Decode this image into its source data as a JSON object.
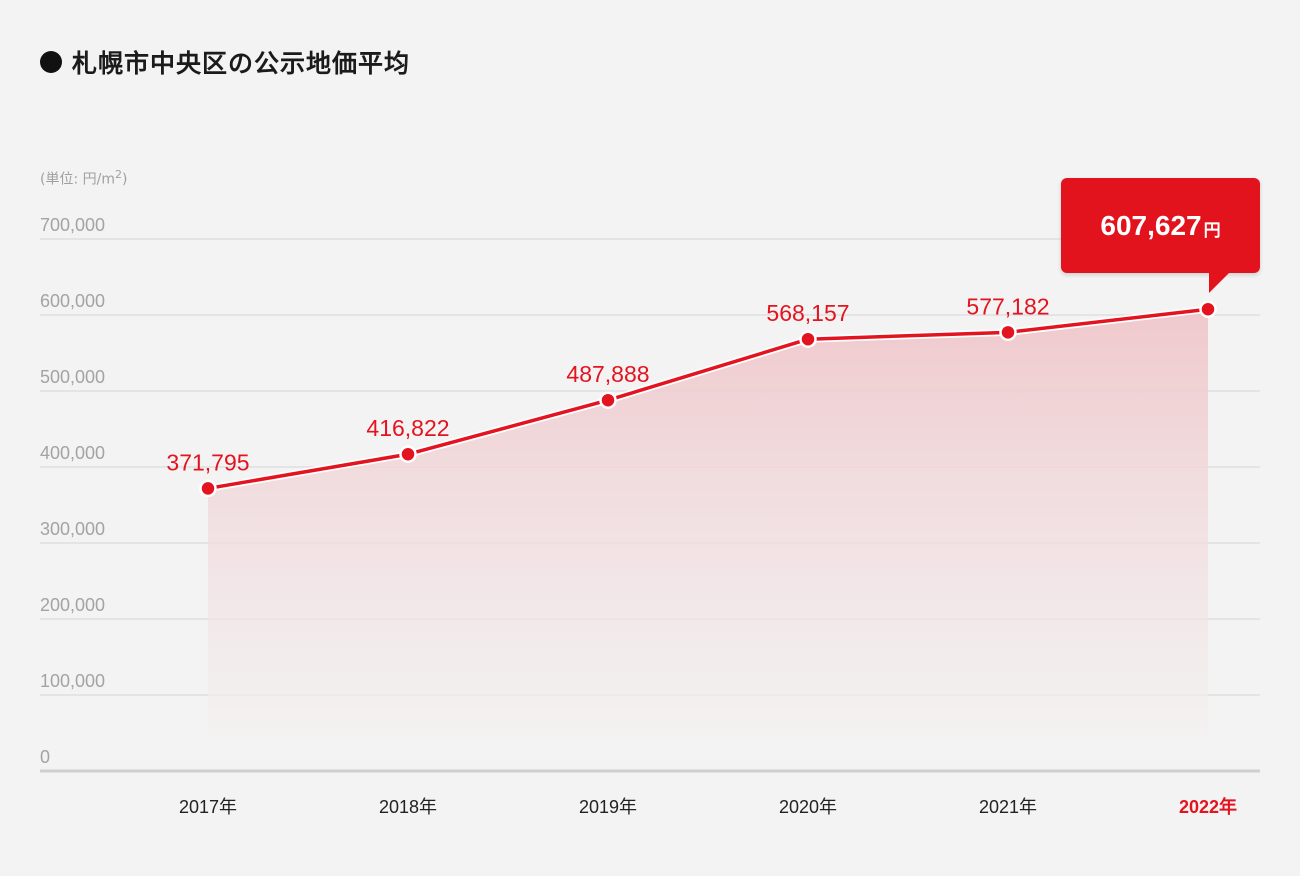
{
  "title": "札幌市中央区の公示地価平均",
  "unit_label": "(単位: 円/m",
  "unit_sup": "2",
  "unit_close": ")",
  "callout": {
    "value": "607,627",
    "unit": "円"
  },
  "colors": {
    "accent": "#e3141f",
    "fill": "#f0c9cd",
    "grid": "#d6d6d6",
    "axis": "#cfcfcf"
  },
  "chart_data": {
    "type": "area",
    "categories": [
      "2017年",
      "2018年",
      "2019年",
      "2020年",
      "2021年",
      "2022年"
    ],
    "values": [
      371795,
      416822,
      487888,
      568157,
      577182,
      607627
    ],
    "labels": [
      "371,795",
      "416,822",
      "487,888",
      "568,157",
      "577,182",
      "607,627"
    ],
    "yticks": [
      0,
      100000,
      200000,
      300000,
      400000,
      500000,
      600000,
      700000
    ],
    "ytick_labels": [
      "0",
      "100,000",
      "200,000",
      "300,000",
      "400,000",
      "500,000",
      "600,000",
      "700,000"
    ],
    "ylim": [
      0,
      700000
    ],
    "highlight_index": 5,
    "grid": true
  }
}
